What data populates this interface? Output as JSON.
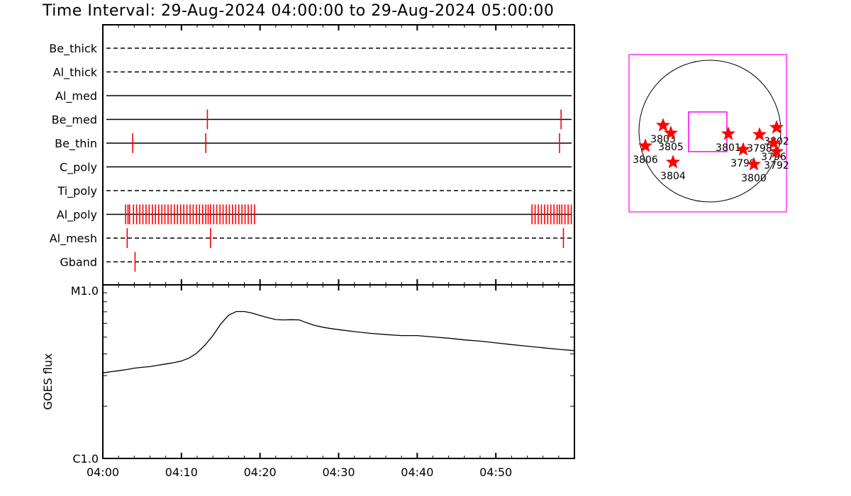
{
  "title": "Time Interval: 29-Aug-2024 04:00:00 to 29-Aug-2024 05:00:00",
  "colors": {
    "accent": "#ff0000",
    "fov": "#ff00ff",
    "axes": "#000000"
  },
  "chart_data": [
    {
      "type": "timeline",
      "x_unit": "minutes after 04:00",
      "xlim": [
        0,
        60
      ],
      "channels": [
        {
          "name": "Be_thick",
          "line_style": "dashed",
          "events": []
        },
        {
          "name": "Al_thick",
          "line_style": "dashed",
          "events": []
        },
        {
          "name": "Al_med",
          "line_style": "solid",
          "events": []
        },
        {
          "name": "Be_med",
          "line_style": "solid",
          "events": [
            13.3,
            58.3
          ]
        },
        {
          "name": "Be_thin",
          "line_style": "solid",
          "events": [
            3.8,
            13.1,
            58.1
          ]
        },
        {
          "name": "C_poly",
          "line_style": "solid",
          "events": []
        },
        {
          "name": "Ti_poly",
          "line_style": "dashed",
          "events": []
        },
        {
          "name": "Al_poly",
          "line_style": "solid",
          "events": [
            2.9,
            3.2,
            3.4,
            3.9,
            4.3,
            4.7,
            5.1,
            5.5,
            5.9,
            6.3,
            6.7,
            7.1,
            7.5,
            7.9,
            8.3,
            8.7,
            9.1,
            9.5,
            9.9,
            10.3,
            10.7,
            11.1,
            11.5,
            11.9,
            12.3,
            12.7,
            13.1,
            13.4,
            13.7,
            14.1,
            14.5,
            14.9,
            15.3,
            15.7,
            16.1,
            16.5,
            16.9,
            17.3,
            17.7,
            18.1,
            18.5,
            18.9,
            19.3,
            54.6,
            55.0,
            55.4,
            55.8,
            56.2,
            56.6,
            57.0,
            57.4,
            57.8,
            58.1,
            58.4,
            58.8,
            59.2,
            59.6
          ]
        },
        {
          "name": "Al_mesh",
          "line_style": "dashed",
          "events": [
            3.1,
            13.7,
            58.6
          ]
        },
        {
          "name": "Gband",
          "line_style": "dashed",
          "events": [
            4.1
          ]
        }
      ]
    },
    {
      "type": "line",
      "ylabel": "GOES flux",
      "yscale": "log",
      "ylim": [
        1e-06,
        1e-05
      ],
      "ytick_labels": [
        "C1.0",
        "M1.0"
      ],
      "xlim": [
        0,
        60
      ],
      "xtick_labels": [
        "04:00",
        "04:10",
        "04:20",
        "04:30",
        "04:40",
        "04:50"
      ],
      "series": [
        {
          "x": [
            0,
            1,
            2,
            3,
            4,
            5,
            6,
            7,
            8,
            9,
            10,
            11,
            12,
            13,
            14,
            15,
            16,
            17,
            18,
            19,
            20,
            21,
            22,
            23,
            24,
            25,
            26,
            27,
            28,
            29,
            30,
            32,
            34,
            36,
            38,
            40,
            42,
            44,
            46,
            48,
            50,
            52,
            54,
            56,
            58,
            60
          ],
          "y": [
            3.11e-06,
            3.16e-06,
            3.2e-06,
            3.25e-06,
            3.31e-06,
            3.35e-06,
            3.38e-06,
            3.44e-06,
            3.5e-06,
            3.56e-06,
            3.64e-06,
            3.79e-06,
            4.06e-06,
            4.5e-06,
            5.1e-06,
            5.95e-06,
            6.68e-06,
            7.02e-06,
            7.02e-06,
            6.87e-06,
            6.66e-06,
            6.47e-06,
            6.31e-06,
            6.28e-06,
            6.3e-06,
            6.28e-06,
            6.03e-06,
            5.83e-06,
            5.7e-06,
            5.6e-06,
            5.52e-06,
            5.38e-06,
            5.26e-06,
            5.17e-06,
            5.1e-06,
            5.1e-06,
            5.01e-06,
            4.93e-06,
            4.82e-06,
            4.74e-06,
            4.63e-06,
            4.53e-06,
            4.43e-06,
            4.34e-06,
            4.25e-06,
            4.18e-06
          ]
        }
      ]
    },
    {
      "type": "scatter",
      "marker": "star",
      "x_unit": "solar disk radius (east = -, west = +)",
      "y_unit": "solar disk radius (north = +)",
      "points": [
        {
          "label": "3803",
          "x": -0.66,
          "y": 0.08
        },
        {
          "label": "3805",
          "x": -0.55,
          "y": -0.03
        },
        {
          "label": "3806",
          "x": -0.91,
          "y": -0.21
        },
        {
          "label": "3804",
          "x": -0.52,
          "y": -0.44
        },
        {
          "label": "3801",
          "x": 0.26,
          "y": -0.04
        },
        {
          "label": "3798",
          "x": 0.7,
          "y": -0.05
        },
        {
          "label": "3802",
          "x": 0.94,
          "y": 0.05
        },
        {
          "label": "3796",
          "x": 0.9,
          "y": -0.17
        },
        {
          "label": "3799",
          "x": 0.47,
          "y": -0.26
        },
        {
          "label": "3792",
          "x": 0.94,
          "y": -0.29
        },
        {
          "label": "3800",
          "x": 0.62,
          "y": -0.47
        }
      ],
      "fov_box": {
        "x_range": [
          -0.3,
          0.24
        ],
        "y_range": [
          -0.29,
          0.27
        ]
      }
    }
  ]
}
